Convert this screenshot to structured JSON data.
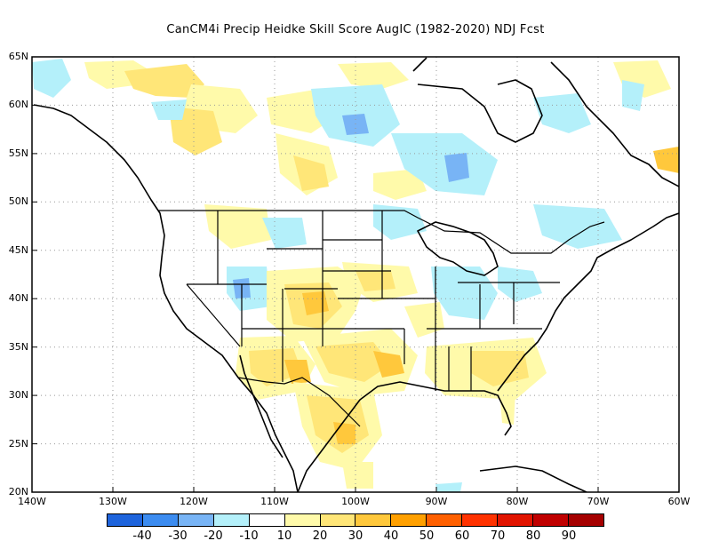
{
  "title": "CanCM4i Precip Heidke Skill Score AugIC (1982-2020) NDJ Fcst",
  "map": {
    "lat_labels": [
      "65N",
      "60N",
      "55N",
      "50N",
      "45N",
      "40N",
      "35N",
      "30N",
      "25N",
      "20N"
    ],
    "lon_labels": [
      "140W",
      "130W",
      "120W",
      "110W",
      "100W",
      "90W",
      "80W",
      "70W",
      "60W"
    ],
    "lat_range": [
      20,
      65
    ],
    "lon_range": [
      -140,
      -60
    ],
    "grid": "dotted"
  },
  "colorbar": {
    "colors": [
      "#1e64dc",
      "#3c8cf0",
      "#78b4f5",
      "#b4f0fa",
      "#ffffff",
      "#fffaaa",
      "#ffe678",
      "#ffc83c",
      "#ffa000",
      "#ff6000",
      "#ff3200",
      "#e11400",
      "#c00000",
      "#a50000"
    ],
    "labels": [
      "-40",
      "-30",
      "-20",
      "-10",
      "10",
      "20",
      "30",
      "40",
      "50",
      "60",
      "70",
      "80",
      "90"
    ]
  }
}
